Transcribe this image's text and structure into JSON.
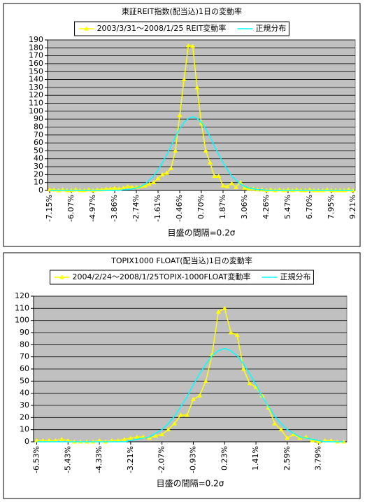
{
  "chart_data": [
    {
      "type": "line",
      "title": "東証REIT指数(配当込)1日の変動率",
      "x_label": "目盛の間隔=0.2σ",
      "categories": [
        "-7.15%",
        null,
        null,
        null,
        null,
        "-6.07%",
        null,
        null,
        null,
        null,
        "-4.97%",
        null,
        null,
        null,
        null,
        "-3.86%",
        null,
        null,
        null,
        null,
        "-2.74%",
        null,
        null,
        null,
        null,
        "-1.61%",
        null,
        null,
        null,
        null,
        "-0.46%",
        null,
        null,
        null,
        null,
        "0.70%",
        null,
        null,
        null,
        null,
        "1.87%",
        null,
        null,
        null,
        null,
        "3.06%",
        null,
        null,
        null,
        null,
        "4.26%",
        null,
        null,
        null,
        null,
        "5.47%",
        null,
        null,
        null,
        null,
        "6.70%",
        null,
        null,
        null,
        null,
        "7.95%",
        null,
        null,
        null,
        null,
        "9.21%"
      ],
      "series": [
        {
          "name": "2003/3/31～2008/1/25 REIT変動率",
          "color": "#ffff00",
          "marker": "triangle",
          "values": [
            1,
            1,
            0,
            1,
            0,
            0,
            1,
            0,
            0,
            1,
            0,
            1,
            1,
            2,
            2,
            3,
            2,
            3,
            5,
            4,
            4,
            5,
            6,
            8,
            10,
            15,
            20,
            22,
            28,
            50,
            95,
            140,
            183,
            182,
            130,
            85,
            50,
            35,
            18,
            18,
            6,
            5,
            9,
            4,
            10,
            3,
            2,
            2,
            1,
            1,
            0,
            1,
            0,
            1,
            0,
            1,
            0,
            1,
            0,
            0,
            1,
            0,
            0,
            0,
            1,
            0,
            0,
            0,
            0,
            1,
            0
          ]
        },
        {
          "name": "正規分布",
          "color": "#00ffff",
          "values": [
            0,
            0,
            0,
            0,
            0,
            0,
            0,
            0,
            0,
            0,
            0,
            0,
            0,
            0,
            0,
            0,
            0,
            1,
            1,
            2,
            3,
            5,
            8,
            13,
            18,
            26,
            35,
            45,
            56,
            68,
            78,
            86,
            91,
            93,
            91,
            86,
            78,
            68,
            56,
            45,
            35,
            26,
            18,
            13,
            8,
            5,
            3,
            2,
            1,
            1,
            0,
            0,
            0,
            0,
            0,
            0,
            0,
            0,
            0,
            0,
            0,
            0,
            0,
            0,
            0,
            0,
            0,
            0,
            0,
            0,
            0
          ]
        }
      ],
      "ylim": [
        0,
        190
      ],
      "yticks": [
        0,
        10,
        20,
        30,
        40,
        50,
        60,
        70,
        80,
        90,
        100,
        110,
        120,
        130,
        140,
        150,
        160,
        170,
        180,
        190
      ],
      "grid": true,
      "plot_background": "#c0c0c0"
    },
    {
      "type": "line",
      "title": "TOPIX1000 FLOAT(配当込)1日の変動率",
      "x_label": "目盛の間隔=0.2σ",
      "categories": [
        "-6.53%",
        null,
        null,
        null,
        null,
        "-5.43%",
        null,
        null,
        null,
        null,
        "-4.33%",
        null,
        null,
        null,
        null,
        "-3.21%",
        null,
        null,
        null,
        null,
        "-2.07%",
        null,
        null,
        null,
        null,
        "-0.93%",
        null,
        null,
        null,
        null,
        "0.23%",
        null,
        null,
        null,
        null,
        "1.41%",
        null,
        null,
        null,
        null,
        "2.59%",
        null,
        null,
        null,
        null,
        "3.79%",
        null,
        null,
        null,
        null
      ],
      "series": [
        {
          "name": "2004/2/24～2008/1/25TOPIX-1000FLOAT変動率",
          "color": "#ffff00",
          "marker": "triangle",
          "values": [
            1,
            1,
            1,
            1,
            2,
            1,
            0,
            0,
            0,
            0,
            1,
            0,
            1,
            1,
            2,
            3,
            4,
            4,
            3,
            5,
            6,
            10,
            15,
            22,
            22,
            35,
            38,
            50,
            72,
            107,
            110,
            90,
            88,
            60,
            48,
            45,
            38,
            28,
            15,
            10,
            3,
            6,
            3,
            4,
            1,
            0,
            1,
            1,
            0,
            0
          ]
        },
        {
          "name": "正規分布",
          "color": "#00ffff",
          "values": [
            0,
            0,
            0,
            0,
            0,
            0,
            0,
            0,
            0,
            0,
            0,
            0,
            0,
            0,
            0,
            1,
            2,
            3,
            4,
            7,
            10,
            15,
            21,
            29,
            37,
            47,
            56,
            64,
            71,
            75,
            77,
            75,
            71,
            64,
            56,
            47,
            37,
            29,
            21,
            15,
            10,
            7,
            4,
            3,
            2,
            1,
            0,
            0,
            0,
            0
          ]
        }
      ],
      "ylim": [
        0,
        120
      ],
      "yticks": [
        0,
        10,
        20,
        30,
        40,
        50,
        60,
        70,
        80,
        90,
        100,
        110,
        120
      ],
      "grid": true,
      "plot_background": "#c0c0c0"
    }
  ]
}
